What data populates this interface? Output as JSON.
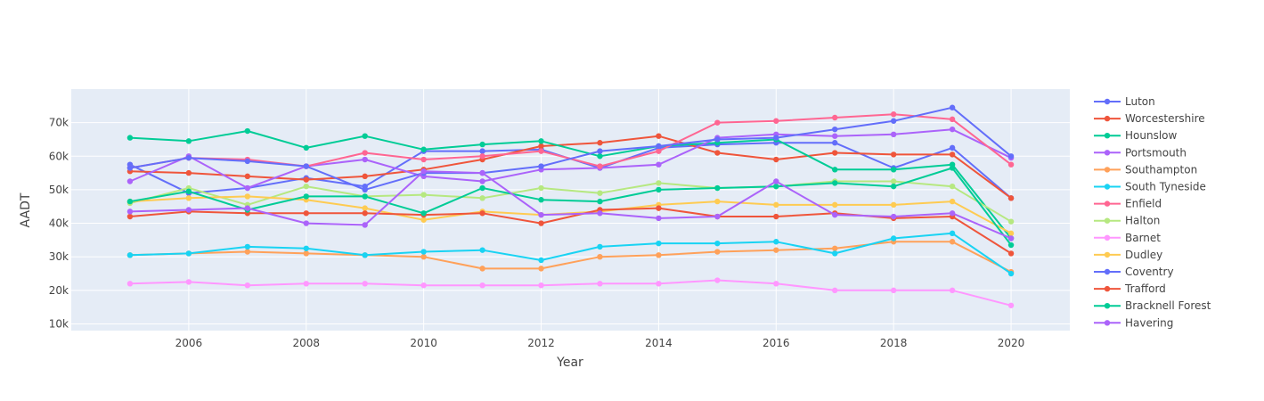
{
  "chart_data": {
    "type": "line",
    "title": "",
    "xlabel": "Year",
    "ylabel": "AADT",
    "xlim": [
      2004.0,
      2021.0
    ],
    "ylim": [
      8000,
      80000
    ],
    "x_ticks": [
      2006,
      2008,
      2010,
      2012,
      2014,
      2016,
      2018,
      2020
    ],
    "y_ticks": [
      10000,
      20000,
      30000,
      40000,
      50000,
      60000,
      70000
    ],
    "y_tick_labels": [
      "10k",
      "20k",
      "30k",
      "40k",
      "50k",
      "60k",
      "70k"
    ],
    "grid": true,
    "legend_position": "right",
    "background": "#E5ECF6",
    "series": [
      {
        "name": "Luton",
        "color": "#636EFA",
        "x": [
          2005,
          2006,
          2007,
          2008,
          2009,
          2010,
          2011,
          2012,
          2013,
          2014,
          2015,
          2016,
          2017,
          2018,
          2019,
          2020
        ],
        "values": [
          57500,
          49000,
          50500,
          53500,
          51000,
          61500,
          61500,
          62000,
          56500,
          62500,
          63500,
          64000,
          64000,
          56500,
          62500,
          47500
        ]
      },
      {
        "name": "Worcestershire",
        "color": "#EF553B",
        "x": [
          2005,
          2006,
          2007,
          2008,
          2009,
          2010,
          2011,
          2012,
          2013,
          2014,
          2015,
          2016,
          2017,
          2018,
          2019,
          2020
        ],
        "values": [
          55500,
          55000,
          54000,
          53000,
          54000,
          56000,
          59000,
          63000,
          64000,
          66000,
          61000,
          59000,
          61000,
          60500,
          60500,
          47500
        ]
      },
      {
        "name": "Hounslow",
        "color": "#00CC96",
        "x": [
          2005,
          2006,
          2007,
          2008,
          2009,
          2010,
          2011,
          2012,
          2013,
          2014,
          2015,
          2016,
          2017,
          2018,
          2019,
          2020
        ],
        "values": [
          65500,
          64500,
          67500,
          62500,
          66000,
          62000,
          63500,
          64500,
          60000,
          63000,
          64000,
          65000,
          56000,
          56000,
          57500,
          35500
        ]
      },
      {
        "name": "Portsmouth",
        "color": "#AB63FA",
        "x": [
          2005,
          2006,
          2007,
          2008,
          2009,
          2010,
          2011,
          2012,
          2013,
          2014,
          2015,
          2016,
          2017,
          2018,
          2019,
          2020
        ],
        "values": [
          52500,
          60000,
          50500,
          57000,
          59000,
          54000,
          52500,
          56000,
          56500,
          57500,
          65500,
          66500,
          66000,
          66500,
          68000,
          59500
        ]
      },
      {
        "name": "Southampton",
        "color": "#FFA15A",
        "x": [
          2005,
          2006,
          2007,
          2008,
          2009,
          2010,
          2011,
          2012,
          2013,
          2014,
          2015,
          2016,
          2017,
          2018,
          2019,
          2020
        ],
        "values": [
          30500,
          31000,
          31500,
          31000,
          30500,
          30000,
          26500,
          26500,
          30000,
          30500,
          31500,
          32000,
          32500,
          34500,
          34500,
          25500
        ]
      },
      {
        "name": "South Tyneside",
        "color": "#19D3F3",
        "x": [
          2005,
          2006,
          2007,
          2008,
          2009,
          2010,
          2011,
          2012,
          2013,
          2014,
          2015,
          2016,
          2017,
          2018,
          2019,
          2020
        ],
        "values": [
          30500,
          31000,
          33000,
          32500,
          30500,
          31500,
          32000,
          29000,
          33000,
          34000,
          34000,
          34500,
          31000,
          35500,
          37000,
          25000
        ]
      },
      {
        "name": "Enfield",
        "color": "#FF6692",
        "x": [
          2005,
          2006,
          2007,
          2008,
          2009,
          2010,
          2011,
          2012,
          2013,
          2014,
          2015,
          2016,
          2017,
          2018,
          2019,
          2020
        ],
        "values": [
          56500,
          59500,
          59000,
          57000,
          61000,
          59000,
          60000,
          61500,
          57000,
          61500,
          70000,
          70500,
          71500,
          72500,
          71000,
          57500
        ]
      },
      {
        "name": "Halton",
        "color": "#B6E880",
        "x": [
          2005,
          2006,
          2007,
          2008,
          2009,
          2010,
          2011,
          2012,
          2013,
          2014,
          2015,
          2016,
          2017,
          2018,
          2019,
          2020
        ],
        "values": [
          46000,
          50500,
          45500,
          51000,
          48000,
          48500,
          47500,
          50500,
          49000,
          52000,
          50500,
          51000,
          52500,
          52500,
          51000,
          40500
        ]
      },
      {
        "name": "Barnet",
        "color": "#FF97FF",
        "x": [
          2005,
          2006,
          2007,
          2008,
          2009,
          2010,
          2011,
          2012,
          2013,
          2014,
          2015,
          2016,
          2017,
          2018,
          2019,
          2020
        ],
        "values": [
          22000,
          22500,
          21500,
          22000,
          22000,
          21500,
          21500,
          21500,
          22000,
          22000,
          23000,
          22000,
          20000,
          20000,
          20000,
          15500
        ]
      },
      {
        "name": "Dudley",
        "color": "#FECB52",
        "x": [
          2005,
          2006,
          2007,
          2008,
          2009,
          2010,
          2011,
          2012,
          2013,
          2014,
          2015,
          2016,
          2017,
          2018,
          2019,
          2020
        ],
        "values": [
          46500,
          47500,
          48000,
          47000,
          44500,
          41000,
          43500,
          42500,
          43500,
          45500,
          46500,
          45500,
          45500,
          45500,
          46500,
          37000
        ]
      },
      {
        "name": "Coventry",
        "color": "#636EFA",
        "x": [
          2005,
          2006,
          2007,
          2008,
          2009,
          2010,
          2011,
          2012,
          2013,
          2014,
          2015,
          2016,
          2017,
          2018,
          2019,
          2020
        ],
        "values": [
          56500,
          59500,
          58500,
          57000,
          50000,
          55000,
          55000,
          57000,
          61500,
          63000,
          65000,
          65500,
          68000,
          70500,
          74500,
          60000
        ]
      },
      {
        "name": "Trafford",
        "color": "#EF553B",
        "x": [
          2005,
          2006,
          2007,
          2008,
          2009,
          2010,
          2011,
          2012,
          2013,
          2014,
          2015,
          2016,
          2017,
          2018,
          2019,
          2020
        ],
        "values": [
          42000,
          43500,
          43000,
          43000,
          43000,
          42500,
          43000,
          40000,
          44000,
          44500,
          42000,
          42000,
          43000,
          41500,
          42000,
          31000
        ]
      },
      {
        "name": "Bracknell Forest",
        "color": "#00CC96",
        "x": [
          2005,
          2006,
          2007,
          2008,
          2009,
          2010,
          2011,
          2012,
          2013,
          2014,
          2015,
          2016,
          2017,
          2018,
          2019,
          2020
        ],
        "values": [
          46500,
          49500,
          44000,
          48000,
          48000,
          43000,
          50500,
          47000,
          46500,
          50000,
          50500,
          51000,
          52000,
          51000,
          56500,
          33500
        ]
      },
      {
        "name": "Havering",
        "color": "#AB63FA",
        "x": [
          2005,
          2006,
          2007,
          2008,
          2009,
          2010,
          2011,
          2012,
          2013,
          2014,
          2015,
          2016,
          2017,
          2018,
          2019,
          2020
        ],
        "values": [
          43500,
          44000,
          44500,
          40000,
          39500,
          55500,
          55000,
          42500,
          43000,
          41500,
          42000,
          52500,
          42500,
          42000,
          43000,
          35500
        ]
      }
    ]
  }
}
